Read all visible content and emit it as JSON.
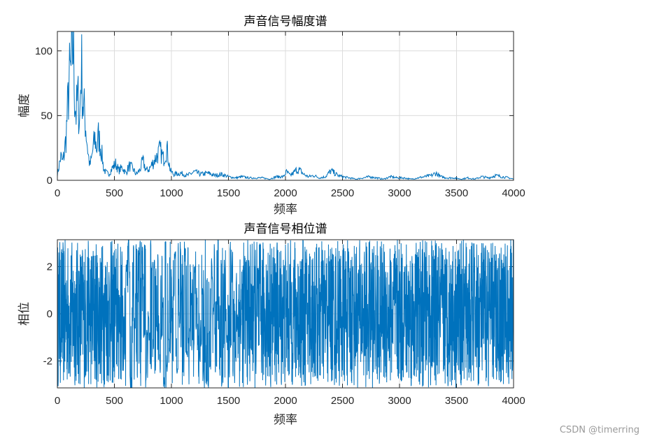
{
  "chart_data": [
    {
      "type": "line",
      "title": "声音信号幅度谱",
      "xlabel": "频率",
      "ylabel": "幅度",
      "xlim": [
        0,
        4000
      ],
      "ylim": [
        0,
        115
      ],
      "xticks": [
        0,
        500,
        1000,
        1500,
        2000,
        2500,
        3000,
        3500,
        4000
      ],
      "yticks": [
        0,
        50,
        100
      ],
      "grid": true,
      "color": "#0072BD",
      "series": [
        {
          "x": [
            0,
            15,
            30,
            45,
            60,
            75,
            90,
            105,
            120,
            135,
            140,
            150,
            165,
            180,
            195,
            210,
            225,
            240,
            255,
            270,
            285,
            300,
            315,
            330,
            345,
            360,
            375,
            390,
            405,
            420,
            450,
            480,
            510,
            540,
            570,
            600,
            630,
            660,
            690,
            720,
            750,
            780,
            810,
            840,
            870,
            900,
            930,
            960,
            990,
            1020,
            1080,
            1140,
            1200,
            1260,
            1320,
            1380,
            1440,
            1500,
            1560,
            1620,
            1680,
            1740,
            1800,
            1860,
            1920,
            1980,
            2010,
            2040,
            2070,
            2100,
            2130,
            2160,
            2200,
            2250,
            2300,
            2350,
            2400,
            2430,
            2460,
            2500,
            2560,
            2620,
            2680,
            2740,
            2800,
            2860,
            2920,
            2980,
            3040,
            3100,
            3160,
            3220,
            3280,
            3320,
            3360,
            3420,
            3480,
            3540,
            3600,
            3660,
            3720,
            3780,
            3840,
            3900,
            3960,
            4000
          ],
          "y": [
            5,
            12,
            20,
            15,
            22,
            35,
            60,
            85,
            90,
            110,
            115,
            75,
            55,
            70,
            48,
            100,
            62,
            55,
            38,
            22,
            12,
            18,
            28,
            35,
            26,
            37,
            30,
            22,
            10,
            7,
            5,
            10,
            14,
            8,
            11,
            6,
            12,
            10,
            5,
            8,
            16,
            8,
            10,
            15,
            20,
            25,
            18,
            27,
            8,
            5,
            6,
            4,
            7,
            5,
            6,
            4,
            5,
            3,
            2,
            3,
            2,
            2,
            2,
            1,
            3,
            3,
            7,
            4,
            6,
            9,
            8,
            5,
            3,
            4,
            2,
            3,
            8,
            6,
            4,
            3,
            2,
            1,
            2,
            3,
            2,
            1,
            3,
            2,
            2,
            1,
            2,
            3,
            4,
            6,
            3,
            2,
            2,
            1,
            2,
            1,
            3,
            2,
            4,
            3,
            2,
            1
          ]
        }
      ]
    },
    {
      "type": "line",
      "title": "声音信号相位谱",
      "xlabel": "频率",
      "ylabel": "相位",
      "xlim": [
        0,
        4000
      ],
      "ylim": [
        -3.1416,
        3.1416
      ],
      "xticks": [
        0,
        500,
        1000,
        1500,
        2000,
        2500,
        3000,
        3500,
        4000
      ],
      "yticks": [
        -2,
        0,
        2
      ],
      "grid": true,
      "color": "#0072BD",
      "series": [
        {
          "x_range": [
            0,
            4000
          ],
          "y_range": [
            -3.1416,
            3.1416
          ],
          "style": "dense-oscillation",
          "sparse_regions": [
            [
              580,
              1000
            ],
            [
              1000,
              1580
            ]
          ]
        }
      ]
    }
  ],
  "watermark": "CSDN @timerring"
}
